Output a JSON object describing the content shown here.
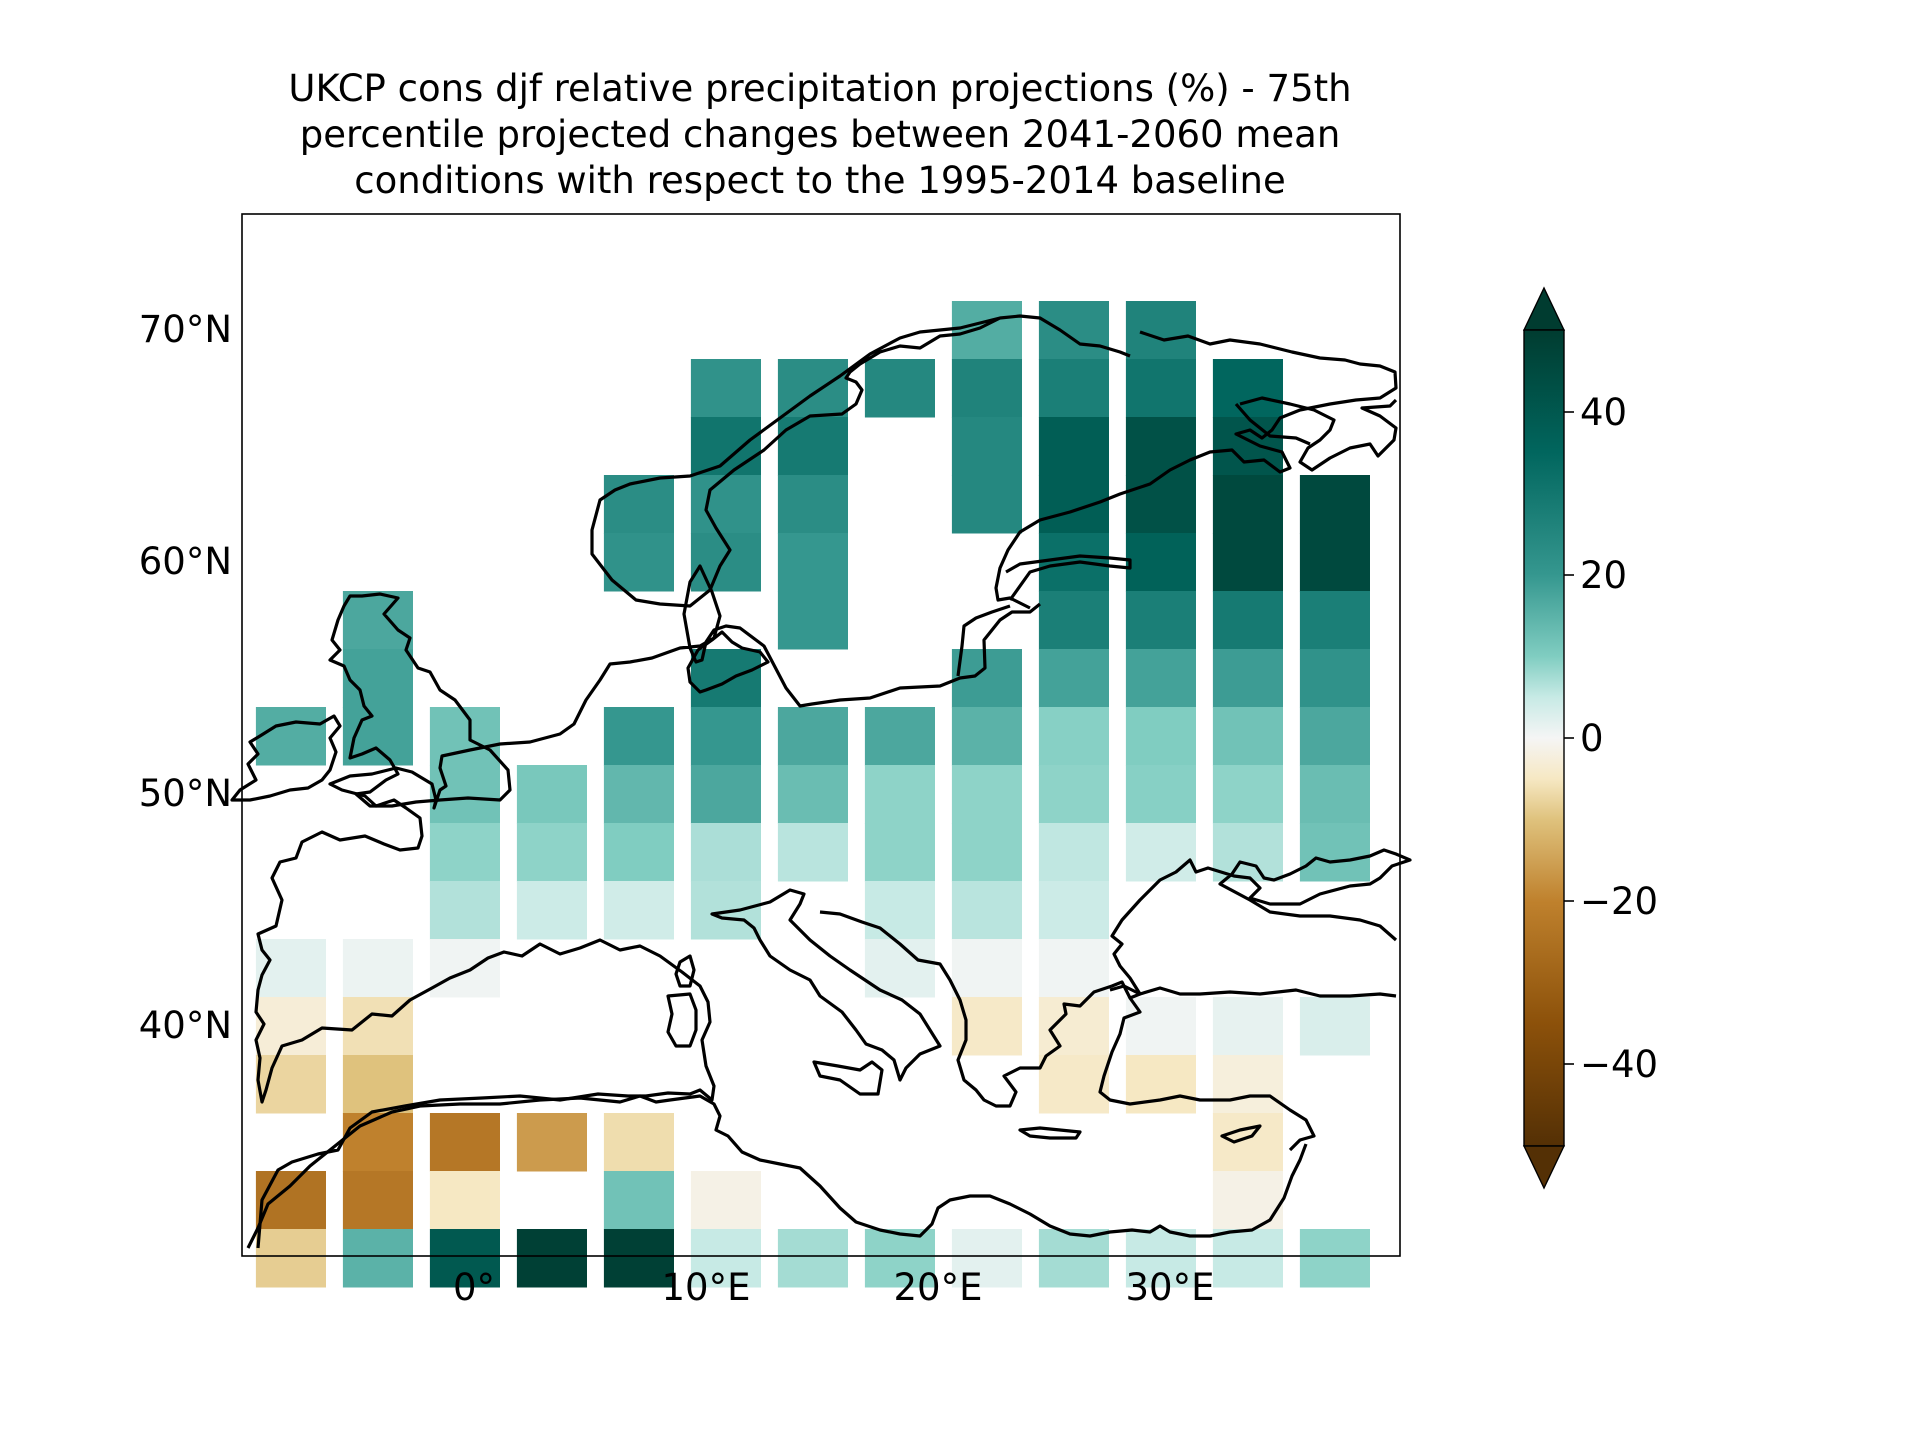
{
  "title": {
    "line1": "UKCP cons djf relative precipitation projections (%) - 75th",
    "line2": "percentile projected changes between 2041-2060 mean",
    "line3": "conditions with respect to the 1995-2014 baseline"
  },
  "chart_data": {
    "type": "heatmap",
    "variable": "relative precipitation change (%)",
    "x_ticks": [
      "0°",
      "10°E",
      "20°E",
      "30°E"
    ],
    "y_ticks": [
      "70°N",
      "60°N",
      "50°N",
      "40°N"
    ],
    "colorbar": {
      "ticks": [
        "40",
        "20",
        "0",
        "−20",
        "−40"
      ],
      "range": [
        -50,
        50
      ],
      "extend": "both",
      "colormap": "BrBG",
      "colors": {
        "max": "#003c30",
        "high": "#35978f",
        "light_high": "#c7eae5",
        "zero": "#f5f5f5",
        "light_low": "#f6e8c3",
        "low": "#bf812d",
        "min": "#543005"
      }
    },
    "grid": {
      "lon_start": -9.4,
      "lat_top": 71.25,
      "cell_lon": 3.75,
      "cell_lat": 2.5,
      "rows": [
        [
          null,
          null,
          null,
          null,
          null,
          null,
          null,
          null,
          null,
          null,
          null,
          null,
          null,
          null,
          null,
          null,
          null,
          null,
          null,
          null,
          null,
          null,
          null,
          null
        ],
        [
          null,
          null,
          null,
          null,
          null,
          null,
          null,
          null,
          null,
          null,
          null,
          null,
          null,
          null,
          null,
          null,
          null,
          null,
          null,
          null,
          null,
          null,
          null,
          null
        ],
        [
          null,
          null,
          null,
          null,
          null,
          null,
          null,
          null,
          null,
          null,
          null,
          null,
          null,
          null,
          null,
          null,
          null,
          null,
          null,
          null,
          null,
          null,
          null,
          null
        ],
        [
          null,
          null,
          null,
          null,
          null,
          null,
          null,
          null,
          null,
          null,
          null,
          null,
          null,
          null,
          null,
          null,
          null,
          null,
          null,
          null,
          null,
          null,
          null,
          null
        ],
        [
          null,
          null,
          null,
          null,
          null,
          null,
          null,
          null,
          null,
          null,
          null,
          null,
          null,
          null,
          null,
          null,
          null,
          null,
          null,
          null,
          null,
          null,
          null,
          null
        ],
        [
          null,
          null,
          null,
          null,
          null,
          null,
          null,
          null,
          null,
          null,
          null,
          null,
          null,
          null,
          null,
          null,
          null,
          null,
          null,
          null,
          null,
          null,
          null,
          null
        ],
        [
          null,
          null,
          null,
          null,
          null,
          null,
          null,
          null,
          null,
          null,
          null,
          null,
          null,
          null,
          null,
          null,
          null,
          null,
          null,
          null,
          null,
          null,
          null,
          null
        ],
        [
          null,
          null,
          null,
          null,
          null,
          null,
          null,
          null,
          null,
          null,
          null,
          null,
          null,
          null,
          null,
          null,
          null,
          null,
          null,
          null,
          null,
          null,
          null,
          null
        ],
        [
          null,
          null,
          null,
          null,
          null,
          null,
          null,
          null,
          null,
          null,
          null,
          null,
          null,
          null,
          null,
          null,
          null,
          null,
          null,
          null,
          null,
          null,
          null,
          null
        ],
        [
          null,
          null,
          null,
          null,
          null,
          null,
          null,
          null,
          null,
          null,
          null,
          null,
          null,
          null,
          null,
          null,
          null,
          null,
          null,
          null,
          null,
          null,
          null,
          null
        ],
        [
          null,
          null,
          null,
          null,
          null,
          null,
          null,
          null,
          null,
          null,
          null,
          null,
          null,
          null,
          null,
          null,
          null,
          null,
          null,
          null,
          null,
          null,
          null,
          null
        ],
        [
          null,
          null,
          null,
          null,
          null,
          null,
          null,
          null,
          null,
          null,
          null,
          null,
          null,
          null,
          null,
          null,
          null,
          null,
          null,
          null,
          null,
          null,
          null,
          null
        ],
        [
          null,
          null,
          null,
          null,
          null,
          null,
          null,
          null,
          null,
          null,
          null,
          null,
          null,
          null,
          null,
          null,
          null,
          null,
          null,
          null,
          null,
          null,
          null,
          null
        ],
        [
          null,
          null,
          null,
          null,
          null,
          null,
          null,
          null,
          null,
          null,
          null,
          null,
          null,
          null,
          null,
          null,
          null,
          null,
          null,
          null,
          null,
          null,
          null,
          null
        ],
        [
          null,
          null,
          null,
          null,
          null,
          null,
          null,
          null,
          null,
          null,
          null,
          null,
          null,
          null,
          null,
          null,
          null,
          null,
          null,
          null,
          null,
          null,
          null,
          null
        ],
        [
          null,
          null,
          null,
          null,
          null,
          null,
          null,
          null,
          null,
          null,
          null,
          null,
          null,
          null,
          null,
          null,
          null,
          null,
          null,
          null,
          null,
          null,
          null,
          null
        ],
        [
          null,
          null,
          null,
          null,
          null,
          null,
          null,
          null,
          null,
          null,
          null,
          null,
          null,
          null,
          null,
          null,
          null,
          null,
          null,
          null,
          null,
          null,
          null,
          null
        ],
        [
          null,
          null,
          null,
          null,
          null,
          null,
          null,
          null,
          null,
          null,
          null,
          null,
          null,
          null,
          null,
          null,
          null,
          null,
          null,
          null,
          null,
          null,
          null,
          null
        ]
      ],
      "cells": [
        [
          null,
          null,
          null,
          null,
          null,
          null,
          null,
          null,
          26,
          32,
          34,
          null,
          null
        ],
        [
          null,
          null,
          null,
          null,
          null,
          31,
          32,
          33,
          34,
          35,
          37,
          40,
          null
        ],
        [
          null,
          null,
          null,
          null,
          null,
          37,
          36,
          null,
          33,
          42,
          45,
          44,
          null
        ],
        [
          null,
          null,
          null,
          null,
          32,
          31,
          32,
          null,
          33,
          42,
          45,
          47,
          47
        ],
        [
          null,
          null,
          null,
          null,
          31,
          32,
          30,
          null,
          null,
          38,
          41,
          47,
          47
        ],
        [
          null,
          27,
          null,
          null,
          null,
          null,
          30,
          null,
          null,
          35,
          35,
          36,
          35
        ],
        [
          null,
          28,
          null,
          null,
          null,
          36,
          null,
          null,
          29,
          28,
          28,
          29,
          31
        ],
        [
          26,
          28,
          22,
          null,
          30,
          30,
          27,
          27,
          25,
          19,
          20,
          22,
          27
        ],
        [
          null,
          null,
          22,
          21,
          24,
          27,
          23,
          18,
          18,
          18,
          19,
          18,
          23
        ],
        [
          null,
          null,
          18,
          18,
          20,
          14,
          12,
          18,
          18,
          11,
          8,
          13,
          22
        ],
        [
          null,
          null,
          13,
          9,
          8,
          13,
          null,
          10,
          12,
          9,
          null,
          null,
          null
        ],
        [
          4,
          2,
          1,
          null,
          null,
          null,
          null,
          4,
          1,
          1,
          null,
          null,
          null
        ],
        [
          -6,
          -12,
          null,
          null,
          null,
          null,
          null,
          null,
          -9,
          -7,
          1,
          3,
          6
        ],
        [
          -15,
          -20,
          null,
          null,
          null,
          null,
          null,
          null,
          null,
          -9,
          -10,
          -5,
          null
        ],
        [
          null,
          -30,
          -32,
          -26,
          -13,
          null,
          null,
          null,
          null,
          null,
          null,
          -9,
          null
        ],
        [
          -33,
          -32,
          -10,
          null,
          22,
          -3,
          null,
          null,
          null,
          null,
          null,
          -3,
          null
        ],
        [
          -17,
          25,
          43,
          49,
          49,
          10,
          15,
          18,
          4,
          15,
          10,
          10,
          18
        ]
      ]
    }
  }
}
